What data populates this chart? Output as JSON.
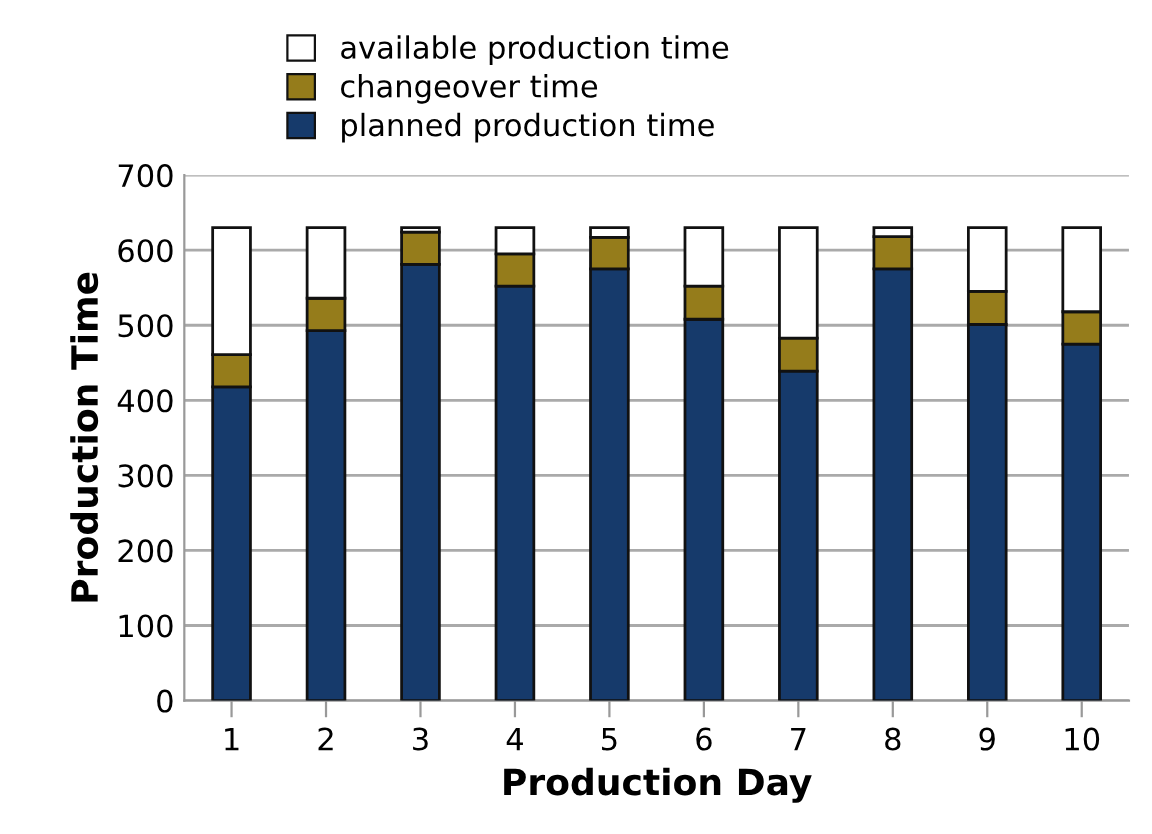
{
  "chart_data": {
    "type": "bar",
    "stacked": true,
    "xlabel": "Production Day",
    "ylabel": "Production Time",
    "categories": [
      "1",
      "2",
      "3",
      "4",
      "5",
      "6",
      "7",
      "8",
      "9",
      "10"
    ],
    "series": [
      {
        "name": "planned production time",
        "color": "#163a6b",
        "values": [
          418,
          493,
          581,
          552,
          575,
          508,
          439,
          575,
          501,
          475
        ]
      },
      {
        "name": "changeover time",
        "color": "#957c1b",
        "values": [
          43,
          43,
          43,
          43,
          42,
          44,
          44,
          43,
          44,
          43
        ]
      },
      {
        "name": "available production time",
        "color": "#ffffff",
        "values": [
          169,
          94,
          6,
          35,
          13,
          78,
          147,
          12,
          85,
          112
        ]
      }
    ],
    "ylim": [
      0,
      700
    ],
    "yticks": [
      0,
      100,
      200,
      300,
      400,
      500,
      600,
      700
    ],
    "grid": "y",
    "legend": "top"
  }
}
